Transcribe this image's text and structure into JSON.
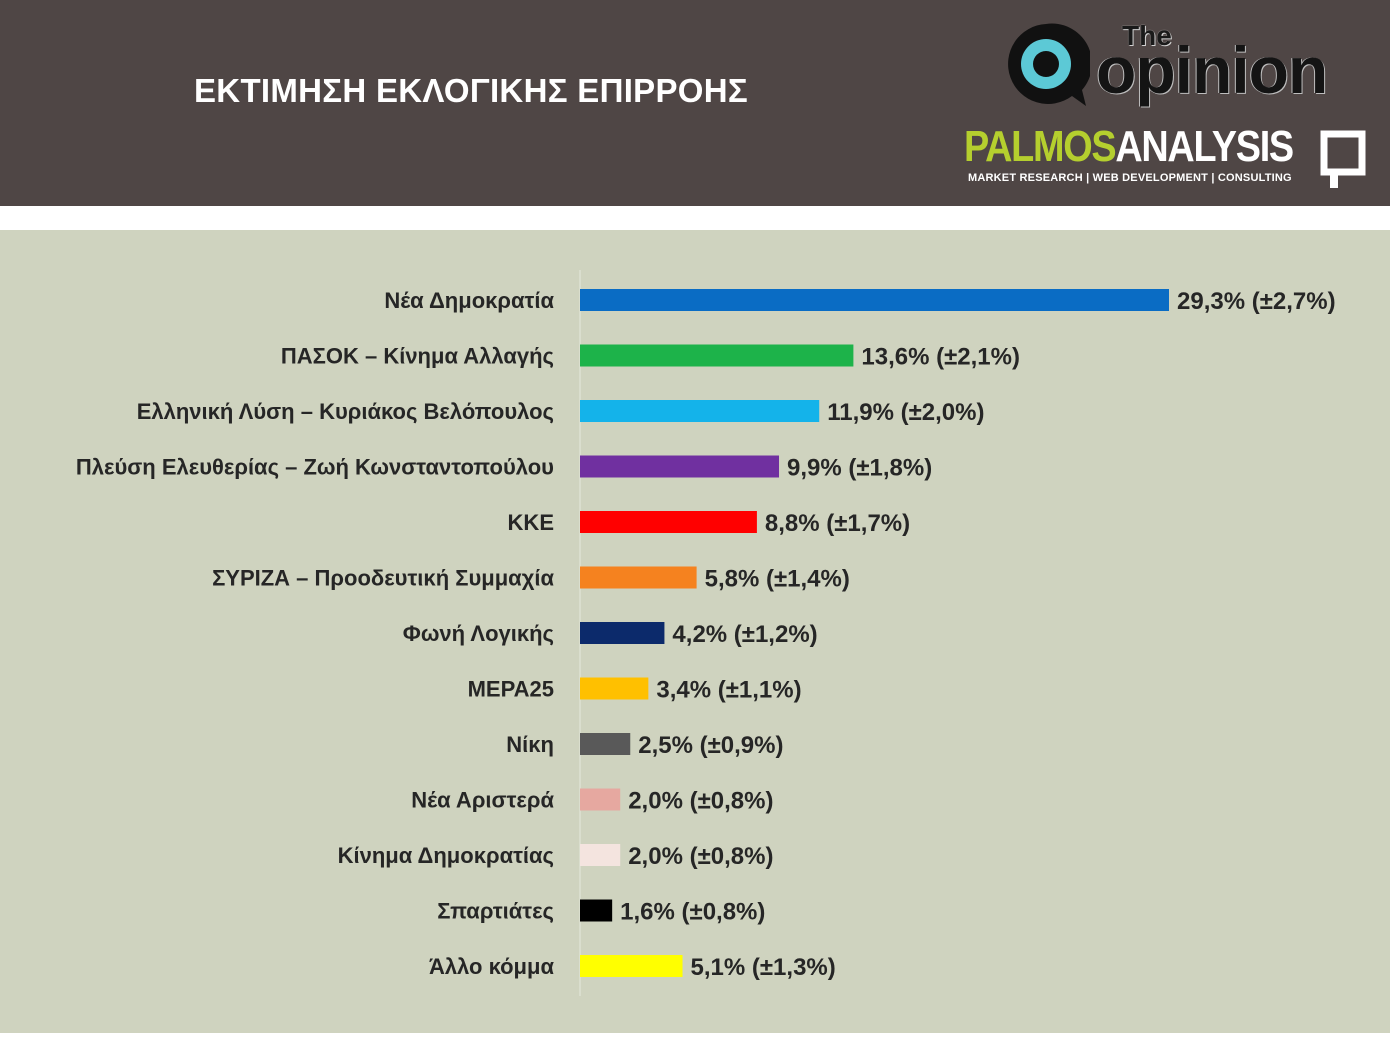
{
  "header": {
    "title": "ΕΚΤΙΜΗΣΗ ΕΚΛΟΓΙΚΗΣ ΕΠΙΡΡΟΗΣ",
    "logo_the": "The",
    "logo_opinion": "opinion",
    "logo_palmos_a": "PALMOS",
    "logo_palmos_b": "ANALYSIS",
    "logo_tagline": "MARKET RESEARCH | WEB DEVELOPMENT | CONSULTING"
  },
  "colors": {
    "header_bg": "#4f4645",
    "plot_bg": "#cfd3bf",
    "logo_teal": "#5cc9d6",
    "palmos_green": "#b5cf2e"
  },
  "icons": {
    "opinion_logo": "speech-bubble-o-icon",
    "palmos_logo": "square-frame-icon"
  },
  "chart_data": {
    "type": "bar",
    "orientation": "horizontal",
    "title": "ΕΚΤΙΜΗΣΗ ΕΚΛΟΓΙΚΗΣ ΕΠΙΡΡΟΗΣ",
    "xlabel": "",
    "ylabel": "",
    "xlim": [
      0,
      29.3
    ],
    "grid": false,
    "legend": "none",
    "categories": [
      "Νέα Δημοκρατία",
      "ΠΑΣΟΚ – Κίνημα Αλλαγής",
      "Ελληνική Λύση – Κυριάκος Βελόπουλος",
      "Πλεύση Ελευθερίας – Ζωή Κωνσταντοπούλου",
      "ΚΚΕ",
      "ΣΥΡΙΖΑ – Προοδευτική Συμμαχία",
      "Φωνή Λογικής",
      "ΜΕΡΑ25",
      "Νίκη",
      "Νέα Αριστερά",
      "Κίνημα Δημοκρατίας",
      "Σπαρτιάτες",
      "Άλλο κόμμα"
    ],
    "values": [
      29.3,
      13.6,
      11.9,
      9.9,
      8.8,
      5.8,
      4.2,
      3.4,
      2.5,
      2.0,
      2.0,
      1.6,
      5.1
    ],
    "margins": [
      2.7,
      2.1,
      2.0,
      1.8,
      1.7,
      1.4,
      1.2,
      1.1,
      0.9,
      0.8,
      0.8,
      0.8,
      1.3
    ],
    "data_labels": [
      "29,3% (±2,7%)",
      "13,6% (±2,1%)",
      "11,9% (±2,0%)",
      "9,9% (±1,8%)",
      "8,8% (±1,7%)",
      "5,8% (±1,4%)",
      "4,2% (±1,2%)",
      "3,4% (±1,1%)",
      "2,5% (±0,9%)",
      "2,0% (±0,8%)",
      "2,0% (±0,8%)",
      "1,6% (±0,8%)",
      "5,1% (±1,3%)"
    ],
    "bar_colors": [
      "#0a6cc4",
      "#1db34a",
      "#14b3ea",
      "#7030a0",
      "#ff0000",
      "#f5821f",
      "#0c2a6b",
      "#ffc000",
      "#595959",
      "#e6a8a0",
      "#f4e4df",
      "#000000",
      "#ffff00"
    ]
  }
}
